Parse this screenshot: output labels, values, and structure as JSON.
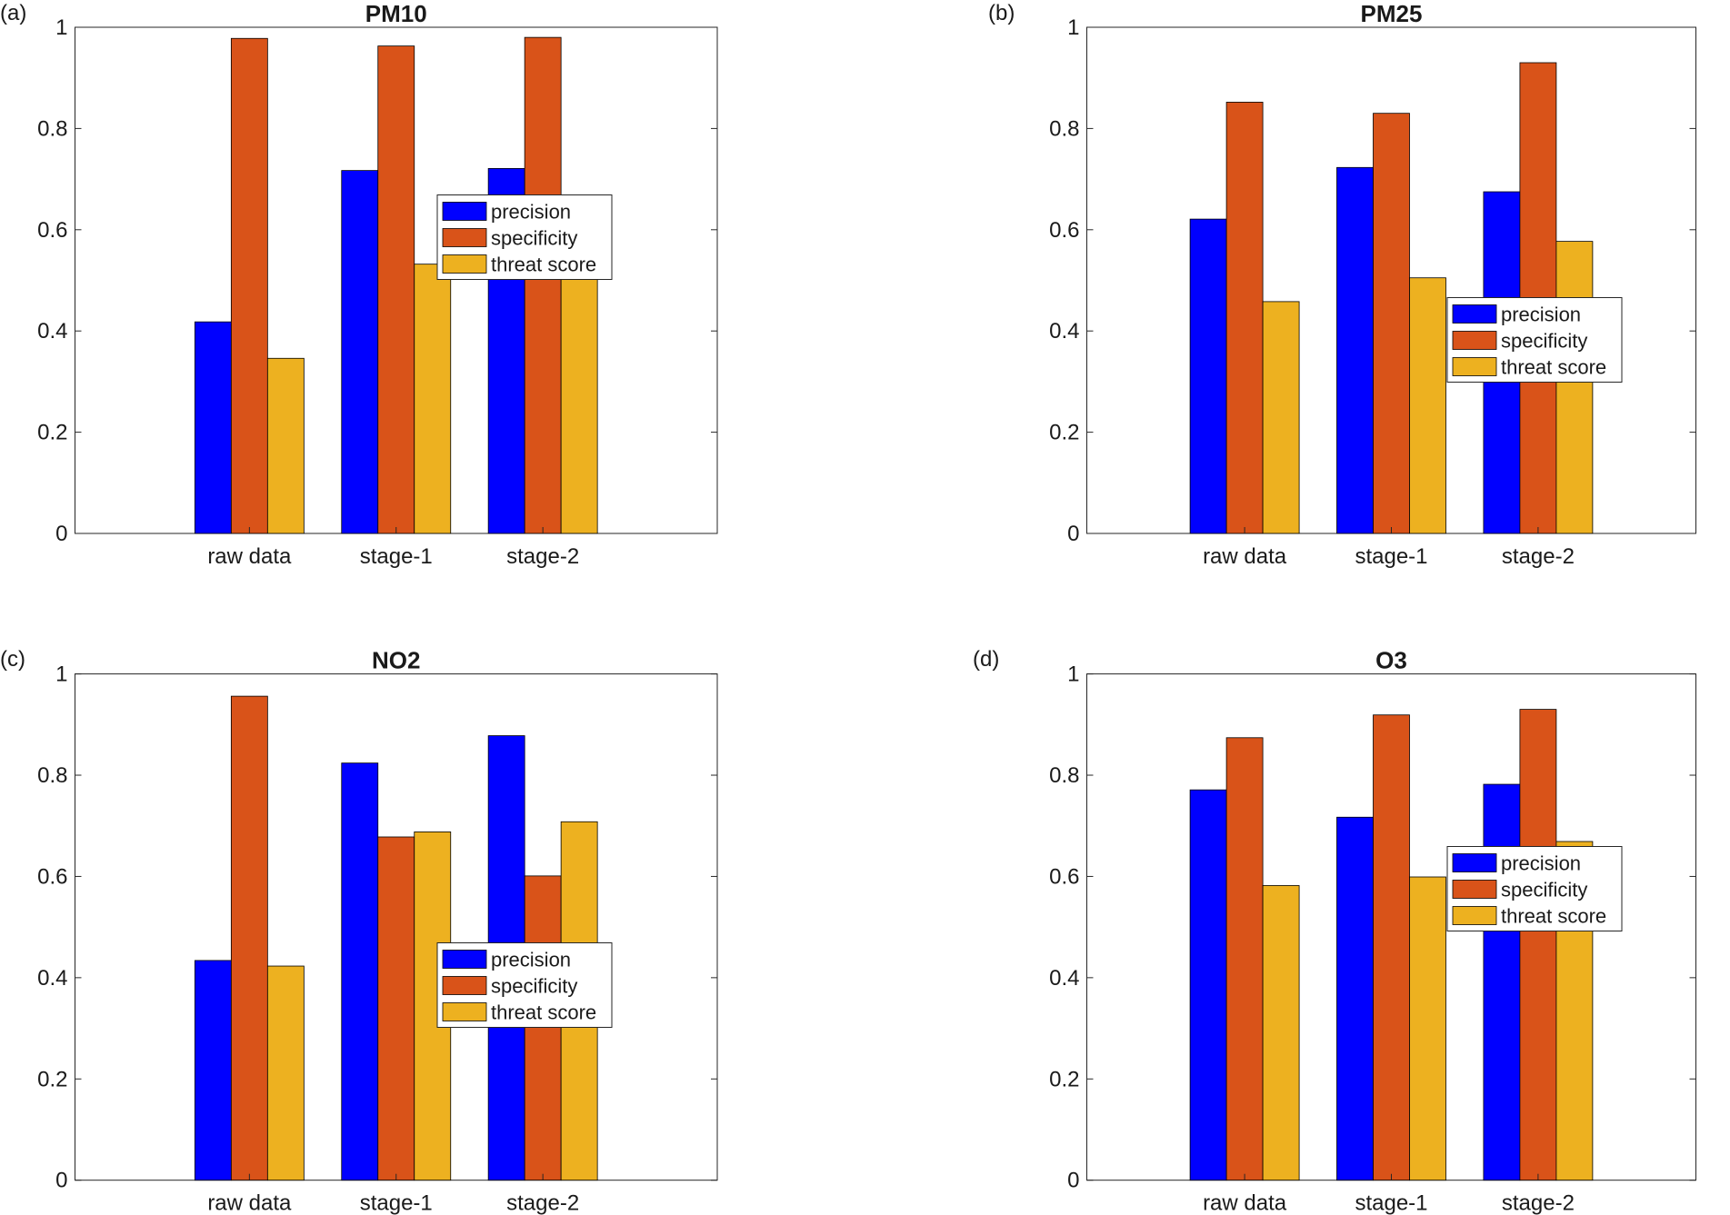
{
  "chart_data": [
    {
      "type": "bar",
      "panel_label": "(a)",
      "title": "PM10",
      "categories": [
        "raw data",
        "stage-1",
        "stage-2"
      ],
      "series": [
        {
          "name": "precision",
          "color": "#0000ff",
          "values": [
            0.418,
            0.717,
            0.721
          ]
        },
        {
          "name": "specificity",
          "color": "#d95319",
          "values": [
            0.978,
            0.963,
            0.98
          ]
        },
        {
          "name": "threat score",
          "color": "#edb120",
          "values": [
            0.346,
            0.532,
            0.608
          ]
        }
      ],
      "yticks": [
        "0",
        "0.2",
        "0.4",
        "0.6",
        "0.8",
        "1"
      ],
      "ylim": [
        0,
        1
      ],
      "grid": false,
      "legend_position": "east"
    },
    {
      "type": "bar",
      "panel_label": "(b)",
      "title": "PM25",
      "categories": [
        "raw data",
        "stage-1",
        "stage-2"
      ],
      "series": [
        {
          "name": "precision",
          "color": "#0000ff",
          "values": [
            0.621,
            0.723,
            0.675
          ]
        },
        {
          "name": "specificity",
          "color": "#d95319",
          "values": [
            0.852,
            0.83,
            0.93
          ]
        },
        {
          "name": "threat score",
          "color": "#edb120",
          "values": [
            0.458,
            0.505,
            0.577
          ]
        }
      ],
      "yticks": [
        "0",
        "0.2",
        "0.4",
        "0.6",
        "0.8",
        "1"
      ],
      "ylim": [
        0,
        1
      ],
      "grid": false,
      "legend_position": "east"
    },
    {
      "type": "bar",
      "panel_label": "(c)",
      "title": "NO2",
      "categories": [
        "raw data",
        "stage-1",
        "stage-2"
      ],
      "series": [
        {
          "name": "precision",
          "color": "#0000ff",
          "values": [
            0.434,
            0.824,
            0.878
          ]
        },
        {
          "name": "specificity",
          "color": "#d95319",
          "values": [
            0.956,
            0.678,
            0.601
          ]
        },
        {
          "name": "threat score",
          "color": "#edb120",
          "values": [
            0.423,
            0.688,
            0.708
          ]
        }
      ],
      "yticks": [
        "0",
        "0.2",
        "0.4",
        "0.6",
        "0.8",
        "1"
      ],
      "ylim": [
        0,
        1
      ],
      "grid": false,
      "legend_position": "southeast"
    },
    {
      "type": "bar",
      "panel_label": "(d)",
      "title": "O3",
      "categories": [
        "raw data",
        "stage-1",
        "stage-2"
      ],
      "series": [
        {
          "name": "precision",
          "color": "#0000ff",
          "values": [
            0.771,
            0.717,
            0.782
          ]
        },
        {
          "name": "specificity",
          "color": "#d95319",
          "values": [
            0.874,
            0.919,
            0.93
          ]
        },
        {
          "name": "threat score",
          "color": "#edb120",
          "values": [
            0.582,
            0.599,
            0.669
          ]
        }
      ],
      "yticks": [
        "0",
        "0.2",
        "0.4",
        "0.6",
        "0.8",
        "1"
      ],
      "ylim": [
        0,
        1
      ],
      "grid": false,
      "legend_position": "east"
    }
  ]
}
